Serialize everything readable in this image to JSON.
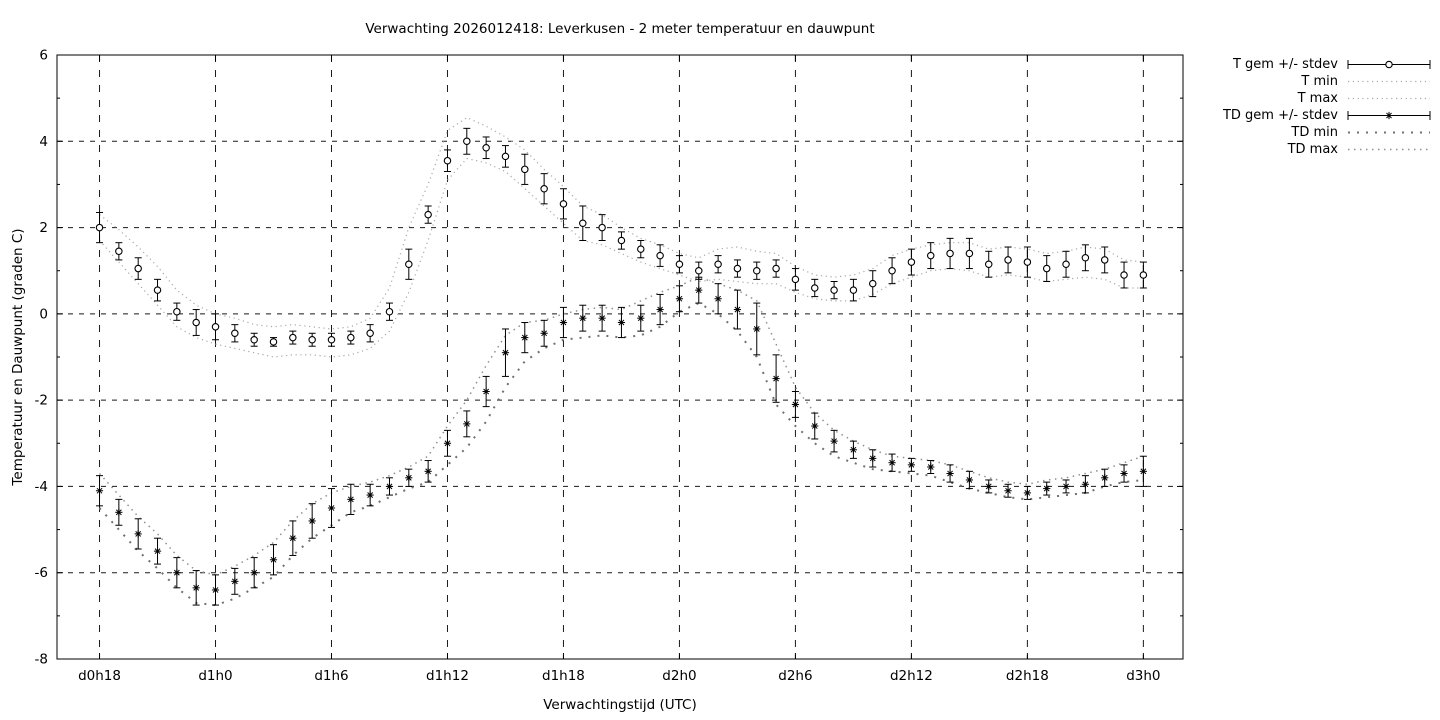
{
  "window": {
    "background": "#ffffff",
    "foreground": "#000000"
  },
  "chart_data": {
    "type": "line",
    "title": "Verwachting 2026012418: Leverkusen - 2 meter temperatuur en dauwpunt",
    "xlabel": "Verwachtingstijd (UTC)",
    "ylabel": "Temperatuur en Dauwpunt (graden C)",
    "ylim": [
      -8,
      6
    ],
    "grid": true,
    "legend_position": "outside-right",
    "x_interval_hours": 1,
    "x_hours_range": [
      0,
      54
    ],
    "xtick_hours": [
      0,
      6,
      12,
      18,
      24,
      30,
      36,
      42,
      48,
      54
    ],
    "xtick_labels": [
      "d0h18",
      "d1h0",
      "d1h6",
      "d1h12",
      "d1h18",
      "d2h0",
      "d2h6",
      "d2h12",
      "d2h18",
      "d3h0"
    ],
    "ytick_values": [
      6,
      4,
      2,
      0,
      -2,
      -4,
      -6,
      -8
    ],
    "ytick_labels": [
      "6",
      "4",
      "2",
      "0",
      "-2",
      "-4",
      "-6",
      "-8"
    ],
    "ytick_minor_values": [
      5,
      3,
      1,
      -1,
      -3,
      -5,
      -7
    ],
    "colors": {
      "data": "#000000",
      "envelope_fine": "#a8a8a8",
      "envelope_medium": "#909090",
      "envelope_coarse": "#707070",
      "grid": "#1a1a1a"
    },
    "series": [
      {
        "id": "t_mean",
        "name": "T gem +/- stdev",
        "style": "errorbar-circle",
        "values": [
          2.0,
          1.45,
          1.05,
          0.55,
          0.05,
          -0.2,
          -0.3,
          -0.45,
          -0.6,
          -0.65,
          -0.55,
          -0.6,
          -0.6,
          -0.55,
          -0.45,
          0.05,
          1.15,
          2.3,
          3.55,
          4.0,
          3.85,
          3.65,
          3.35,
          2.9,
          2.55,
          2.1,
          2.0,
          1.7,
          1.5,
          1.35,
          1.15,
          1.0,
          1.15,
          1.05,
          1.0,
          1.05,
          0.8,
          0.6,
          0.55,
          0.55,
          0.7,
          1.0,
          1.2,
          1.35,
          1.4,
          1.4,
          1.15,
          1.25,
          1.2,
          1.05,
          1.15,
          1.3,
          1.25,
          0.9,
          0.9
        ],
        "stdev": [
          0.35,
          0.2,
          0.25,
          0.25,
          0.2,
          0.3,
          0.3,
          0.2,
          0.15,
          0.1,
          0.15,
          0.15,
          0.15,
          0.15,
          0.2,
          0.2,
          0.35,
          0.2,
          0.25,
          0.3,
          0.25,
          0.25,
          0.35,
          0.35,
          0.35,
          0.4,
          0.3,
          0.2,
          0.2,
          0.25,
          0.2,
          0.2,
          0.2,
          0.2,
          0.2,
          0.2,
          0.25,
          0.2,
          0.2,
          0.25,
          0.3,
          0.3,
          0.3,
          0.3,
          0.35,
          0.35,
          0.3,
          0.3,
          0.35,
          0.3,
          0.3,
          0.3,
          0.3,
          0.3,
          0.3
        ]
      },
      {
        "id": "t_min",
        "name": "T min",
        "style": "dotted-fine",
        "values": [
          1.7,
          1.2,
          0.7,
          0.2,
          -0.3,
          -0.55,
          -0.7,
          -0.8,
          -0.9,
          -1.0,
          -0.95,
          -0.95,
          -1.0,
          -0.95,
          -0.8,
          -0.4,
          0.5,
          1.7,
          3.1,
          3.6,
          3.5,
          3.3,
          2.9,
          2.5,
          2.1,
          1.7,
          1.6,
          1.4,
          1.2,
          1.05,
          0.9,
          0.75,
          0.8,
          0.75,
          0.7,
          0.7,
          0.5,
          0.35,
          0.3,
          0.3,
          0.45,
          0.7,
          0.85,
          1.0,
          1.05,
          1.0,
          0.85,
          0.9,
          0.85,
          0.75,
          0.8,
          0.85,
          0.8,
          0.6,
          0.6
        ]
      },
      {
        "id": "t_max",
        "name": "T max",
        "style": "dotted-fine",
        "values": [
          2.3,
          1.95,
          1.55,
          1.1,
          0.55,
          0.2,
          0.0,
          -0.1,
          -0.25,
          -0.3,
          -0.25,
          -0.3,
          -0.35,
          -0.3,
          -0.1,
          0.6,
          2.0,
          3.0,
          4.25,
          4.55,
          4.35,
          4.1,
          3.8,
          3.35,
          2.95,
          2.5,
          2.3,
          2.0,
          1.75,
          1.6,
          1.4,
          1.3,
          1.5,
          1.55,
          1.45,
          1.4,
          1.1,
          0.9,
          0.85,
          0.9,
          1.05,
          1.35,
          1.5,
          1.6,
          1.65,
          1.65,
          1.5,
          1.55,
          1.5,
          1.4,
          1.45,
          1.55,
          1.5,
          1.25,
          1.2
        ]
      },
      {
        "id": "td_mean",
        "name": "TD gem +/- stdev",
        "style": "errorbar-asterisk",
        "values": [
          -4.1,
          -4.6,
          -5.1,
          -5.5,
          -6.0,
          -6.35,
          -6.4,
          -6.2,
          -6.0,
          -5.7,
          -5.2,
          -4.8,
          -4.5,
          -4.3,
          -4.2,
          -4.0,
          -3.8,
          -3.65,
          -3.0,
          -2.55,
          -1.8,
          -0.9,
          -0.55,
          -0.45,
          -0.2,
          -0.1,
          -0.1,
          -0.2,
          -0.1,
          0.1,
          0.35,
          0.55,
          0.35,
          0.1,
          -0.35,
          -1.5,
          -2.1,
          -2.6,
          -2.95,
          -3.15,
          -3.35,
          -3.45,
          -3.5,
          -3.55,
          -3.7,
          -3.85,
          -4.0,
          -4.1,
          -4.15,
          -4.05,
          -4.0,
          -3.95,
          -3.8,
          -3.7,
          -3.65
        ],
        "stdev": [
          0.35,
          0.3,
          0.35,
          0.3,
          0.35,
          0.4,
          0.35,
          0.3,
          0.35,
          0.35,
          0.4,
          0.4,
          0.45,
          0.35,
          0.25,
          0.2,
          0.2,
          0.25,
          0.3,
          0.3,
          0.35,
          0.55,
          0.35,
          0.3,
          0.35,
          0.3,
          0.3,
          0.35,
          0.3,
          0.35,
          0.3,
          0.3,
          0.35,
          0.45,
          0.6,
          0.55,
          0.3,
          0.3,
          0.25,
          0.2,
          0.2,
          0.2,
          0.15,
          0.15,
          0.2,
          0.2,
          0.15,
          0.15,
          0.15,
          0.15,
          0.15,
          0.2,
          0.2,
          0.2,
          0.35
        ]
      },
      {
        "id": "td_min",
        "name": "TD min",
        "style": "dotted-coarse",
        "values": [
          -4.5,
          -5.0,
          -5.5,
          -5.9,
          -6.35,
          -6.7,
          -6.75,
          -6.6,
          -6.35,
          -6.1,
          -5.6,
          -5.2,
          -4.9,
          -4.6,
          -4.45,
          -4.25,
          -4.05,
          -3.9,
          -3.5,
          -3.1,
          -2.5,
          -1.7,
          -1.1,
          -0.8,
          -0.6,
          -0.55,
          -0.5,
          -0.55,
          -0.5,
          -0.3,
          0.05,
          0.25,
          0.0,
          -0.4,
          -1.0,
          -2.1,
          -2.6,
          -3.0,
          -3.3,
          -3.45,
          -3.6,
          -3.65,
          -3.7,
          -3.75,
          -3.9,
          -4.05,
          -4.15,
          -4.25,
          -4.3,
          -4.25,
          -4.2,
          -4.15,
          -4.0,
          -3.9,
          -3.85
        ]
      },
      {
        "id": "td_max",
        "name": "TD max",
        "style": "dotted-medium",
        "values": [
          -3.7,
          -4.2,
          -4.7,
          -5.1,
          -5.6,
          -5.95,
          -6.05,
          -5.85,
          -5.6,
          -5.3,
          -4.8,
          -4.4,
          -4.15,
          -4.0,
          -3.9,
          -3.75,
          -3.55,
          -3.3,
          -2.6,
          -2.0,
          -1.2,
          -0.5,
          -0.2,
          -0.15,
          0.0,
          0.1,
          0.15,
          0.1,
          0.3,
          0.5,
          0.65,
          0.85,
          0.7,
          0.55,
          0.3,
          -0.7,
          -1.7,
          -2.3,
          -2.7,
          -2.95,
          -3.15,
          -3.3,
          -3.35,
          -3.4,
          -3.5,
          -3.65,
          -3.8,
          -3.9,
          -3.95,
          -3.85,
          -3.8,
          -3.7,
          -3.6,
          -3.45,
          -3.3
        ]
      }
    ]
  }
}
